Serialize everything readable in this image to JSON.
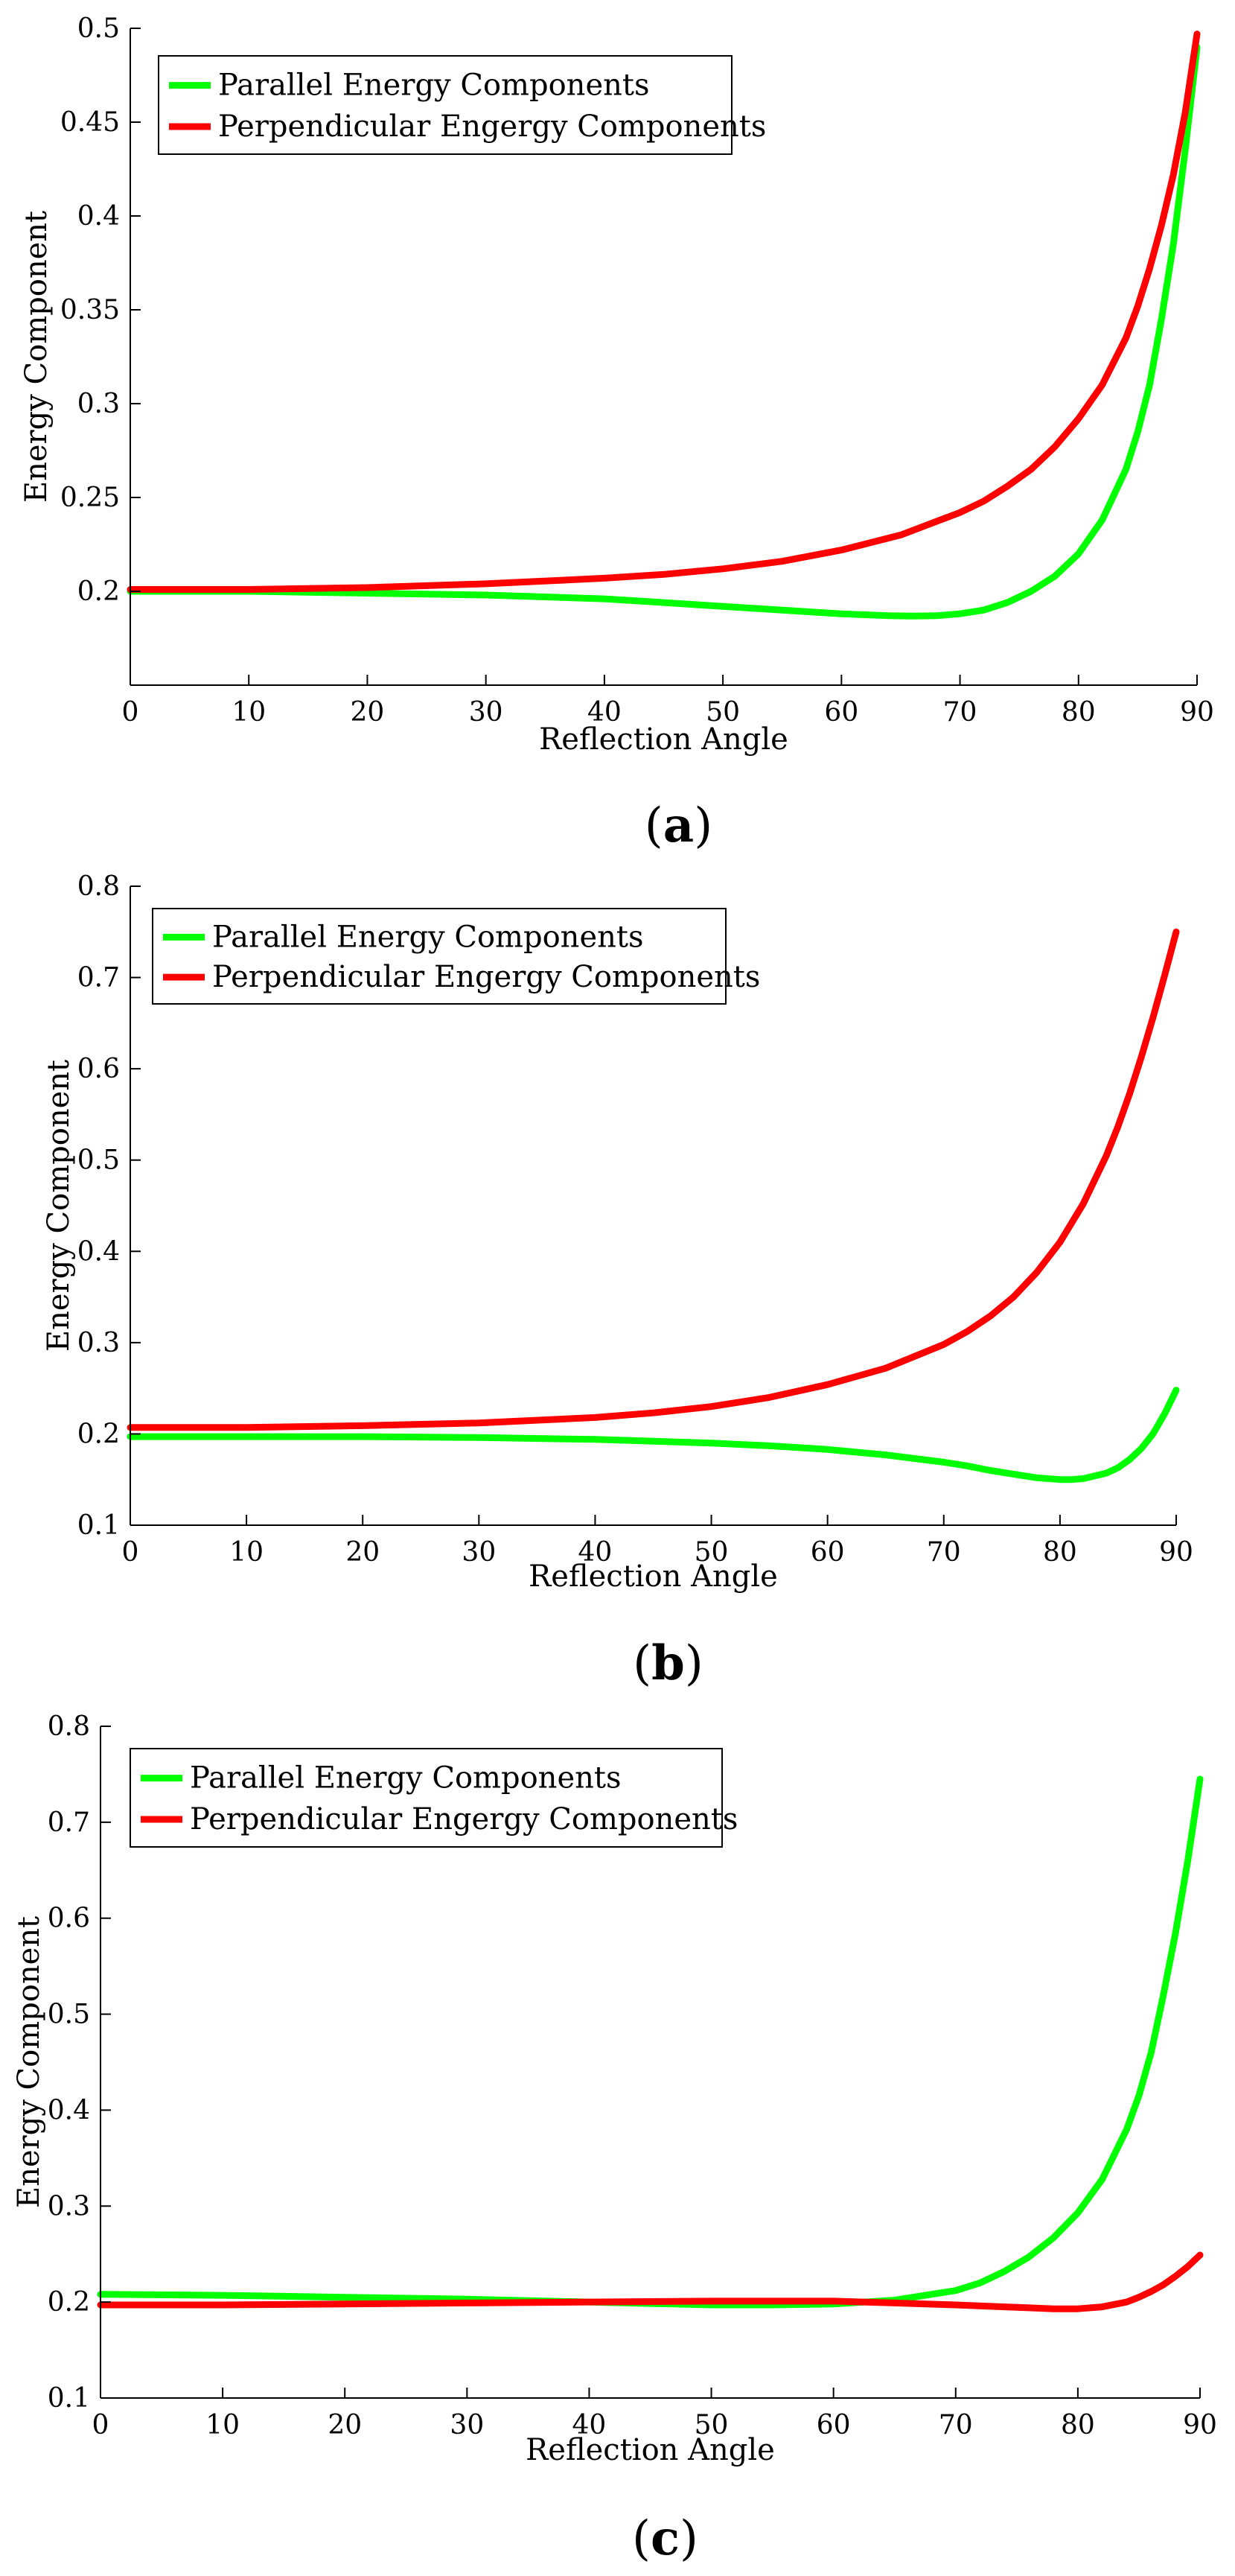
{
  "chart_data": [
    {
      "type": "line",
      "caption": {
        "open": "(",
        "letter": "a",
        "close": ")"
      },
      "xlabel": "Reflection Angle",
      "ylabel": "Energy Component",
      "xlim": [
        0,
        90
      ],
      "ylim": [
        0.15,
        0.5
      ],
      "xticks": [
        0,
        10,
        20,
        30,
        40,
        50,
        60,
        70,
        80,
        90
      ],
      "yticks": [
        0.2,
        0.25,
        0.3,
        0.35,
        0.4,
        0.45,
        0.5
      ],
      "ytick_labels": [
        "0.2",
        "0.25",
        "0.3",
        "0.35",
        "0.4",
        "0.45",
        "0.5"
      ],
      "legend": "top-left",
      "series": [
        {
          "name": "Parallel Energy Components",
          "color": "#00ff00",
          "x": [
            0,
            10,
            20,
            30,
            40,
            45,
            50,
            55,
            60,
            62,
            64,
            66,
            68,
            70,
            72,
            74,
            76,
            78,
            80,
            82,
            84,
            85,
            86,
            87,
            88,
            89,
            90
          ],
          "y": [
            0.2,
            0.2,
            0.199,
            0.198,
            0.196,
            0.194,
            0.192,
            0.19,
            0.188,
            0.1875,
            0.187,
            0.1868,
            0.187,
            0.188,
            0.19,
            0.194,
            0.2,
            0.208,
            0.22,
            0.238,
            0.265,
            0.285,
            0.31,
            0.345,
            0.385,
            0.435,
            0.49
          ]
        },
        {
          "name": "Perpendicular Engergy Components",
          "color": "#ff0000",
          "x": [
            0,
            10,
            20,
            30,
            40,
            45,
            50,
            55,
            60,
            65,
            70,
            72,
            74,
            76,
            78,
            80,
            82,
            84,
            85,
            86,
            87,
            88,
            89,
            90
          ],
          "y": [
            0.201,
            0.201,
            0.202,
            0.204,
            0.207,
            0.209,
            0.212,
            0.216,
            0.222,
            0.23,
            0.242,
            0.248,
            0.256,
            0.265,
            0.277,
            0.292,
            0.31,
            0.335,
            0.352,
            0.372,
            0.395,
            0.422,
            0.455,
            0.497
          ]
        }
      ]
    },
    {
      "type": "line",
      "caption": {
        "open": "(",
        "letter": "b",
        "close": ")"
      },
      "xlabel": "Reflection Angle",
      "ylabel": "Energy Component",
      "xlim": [
        0,
        90
      ],
      "ylim": [
        0.1,
        0.8
      ],
      "xticks": [
        0,
        10,
        20,
        30,
        40,
        50,
        60,
        70,
        80,
        90
      ],
      "yticks": [
        0.1,
        0.2,
        0.3,
        0.4,
        0.5,
        0.6,
        0.7,
        0.8
      ],
      "ytick_labels": [
        "0.1",
        "0.2",
        "0.3",
        "0.4",
        "0.5",
        "0.6",
        "0.7",
        "0.8"
      ],
      "legend": "top-left",
      "series": [
        {
          "name": "Parallel Energy Components",
          "color": "#00ff00",
          "x": [
            0,
            10,
            20,
            30,
            40,
            50,
            55,
            60,
            65,
            70,
            72,
            74,
            76,
            78,
            80,
            81,
            82,
            84,
            85,
            86,
            87,
            88,
            89,
            90
          ],
          "y": [
            0.197,
            0.197,
            0.197,
            0.196,
            0.194,
            0.19,
            0.187,
            0.183,
            0.177,
            0.169,
            0.165,
            0.16,
            0.156,
            0.152,
            0.15,
            0.15,
            0.151,
            0.157,
            0.163,
            0.172,
            0.184,
            0.2,
            0.222,
            0.248
          ]
        },
        {
          "name": "Perpendicular Engergy Components",
          "color": "#ff0000",
          "x": [
            0,
            10,
            20,
            30,
            40,
            45,
            50,
            55,
            60,
            65,
            70,
            72,
            74,
            76,
            78,
            80,
            82,
            84,
            85,
            86,
            87,
            88,
            89,
            90
          ],
          "y": [
            0.207,
            0.207,
            0.209,
            0.212,
            0.218,
            0.223,
            0.23,
            0.24,
            0.254,
            0.272,
            0.298,
            0.312,
            0.329,
            0.35,
            0.377,
            0.41,
            0.452,
            0.505,
            0.537,
            0.573,
            0.613,
            0.656,
            0.702,
            0.75
          ]
        }
      ]
    },
    {
      "type": "line",
      "caption": {
        "open": "(",
        "letter": "c",
        "close": ")"
      },
      "xlabel": "Reflection Angle",
      "ylabel": "Energy Component",
      "xlim": [
        0,
        90
      ],
      "ylim": [
        0.1,
        0.8
      ],
      "xticks": [
        0,
        10,
        20,
        30,
        40,
        50,
        60,
        70,
        80,
        90
      ],
      "yticks": [
        0.1,
        0.2,
        0.3,
        0.4,
        0.5,
        0.6,
        0.7,
        0.8
      ],
      "ytick_labels": [
        "0.1",
        "0.2",
        "0.3",
        "0.4",
        "0.5",
        "0.6",
        "0.7",
        "0.8"
      ],
      "legend": "top-left",
      "series": [
        {
          "name": "Parallel Energy Components",
          "color": "#00ff00",
          "x": [
            0,
            10,
            20,
            30,
            40,
            50,
            55,
            60,
            65,
            70,
            72,
            74,
            76,
            78,
            80,
            82,
            84,
            85,
            86,
            87,
            88,
            89,
            90
          ],
          "y": [
            0.208,
            0.207,
            0.205,
            0.203,
            0.2,
            0.197,
            0.197,
            0.198,
            0.202,
            0.212,
            0.22,
            0.232,
            0.247,
            0.267,
            0.293,
            0.328,
            0.38,
            0.415,
            0.46,
            0.52,
            0.585,
            0.66,
            0.745
          ]
        },
        {
          "name": "Perpendicular Engergy Components",
          "color": "#ff0000",
          "x": [
            0,
            10,
            20,
            30,
            40,
            50,
            55,
            60,
            65,
            70,
            74,
            76,
            78,
            80,
            82,
            84,
            85,
            86,
            87,
            88,
            89,
            90
          ],
          "y": [
            0.197,
            0.197,
            0.198,
            0.199,
            0.2,
            0.201,
            0.201,
            0.201,
            0.199,
            0.197,
            0.195,
            0.194,
            0.193,
            0.193,
            0.195,
            0.2,
            0.205,
            0.211,
            0.218,
            0.227,
            0.237,
            0.249
          ]
        }
      ]
    }
  ]
}
